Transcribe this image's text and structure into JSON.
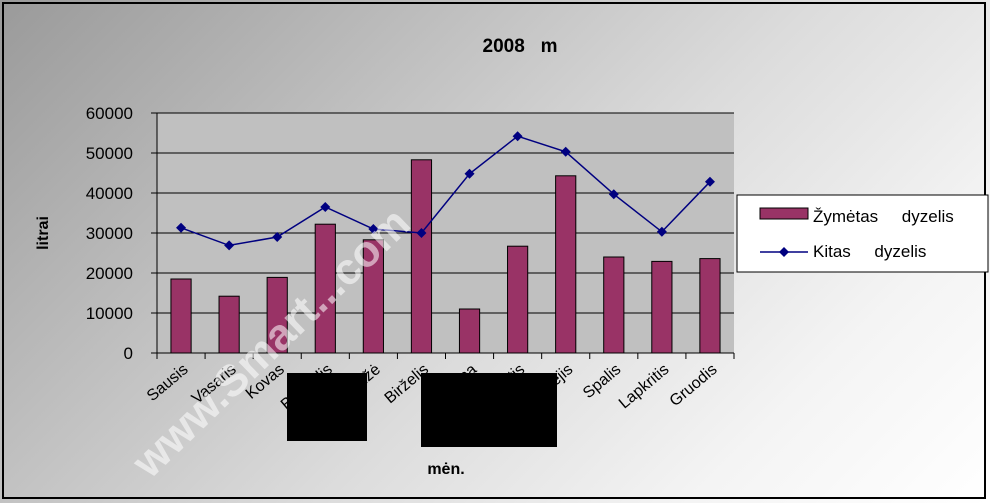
{
  "chart_data": {
    "type": "bar",
    "title": "2008   m",
    "xlabel": "mėn.",
    "ylabel": "litrai",
    "ylim": [
      0,
      60000
    ],
    "yticks": [
      "0",
      "10000",
      "20000",
      "30000",
      "40000",
      "50000",
      "60000"
    ],
    "categories": [
      "Sausis",
      "Vasaris",
      "Kovas",
      "Balandis",
      "Gegužė",
      "Birželis",
      "Liepa",
      "Rugpjūtis",
      "Rugsėjis",
      "Spalis",
      "Lapkritis",
      "Gruodis"
    ],
    "series": [
      {
        "name": "Žymėtas     dyzelis",
        "type": "bar",
        "color": "#993366",
        "values": [
          18500,
          14200,
          18900,
          32200,
          28300,
          48300,
          11000,
          26700,
          44300,
          24000,
          22900,
          23600
        ]
      },
      {
        "name": "Kitas     dyzelis",
        "type": "line",
        "color": "#000080",
        "values": [
          31300,
          26900,
          29000,
          36500,
          31000,
          30000,
          44800,
          54200,
          50300,
          39700,
          30300,
          42800
        ]
      }
    ],
    "grid": true,
    "legend_position": "right",
    "plot_background": "#c0c0c0"
  },
  "watermark": "www.Smart...com"
}
